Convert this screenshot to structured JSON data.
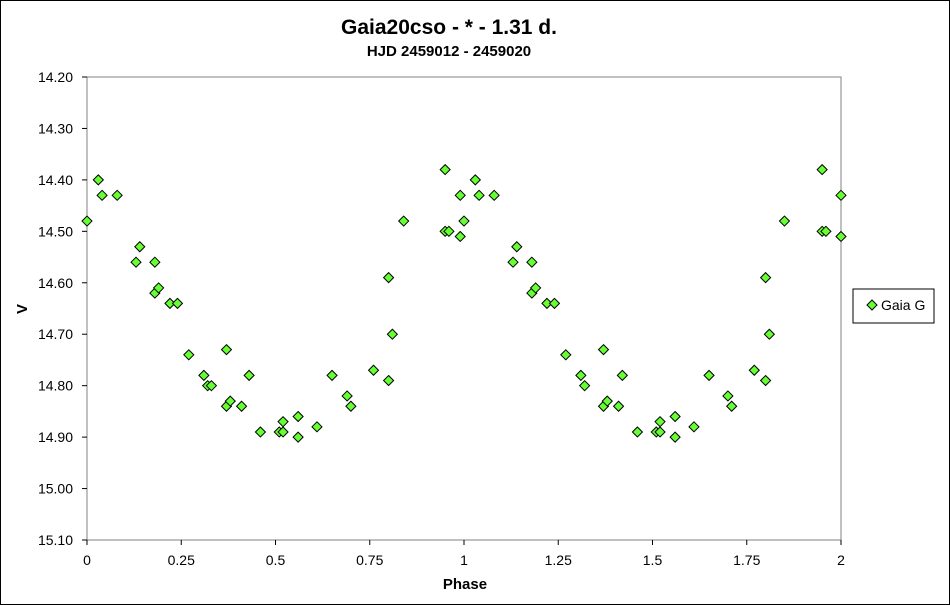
{
  "chart_data": {
    "type": "scatter",
    "title": "Gaia20cso  - * - 1.31 d.",
    "subtitle": "HJD 2459012 - 2459020",
    "xlabel": "Phase",
    "ylabel": "V",
    "xlim": [
      0,
      2
    ],
    "ylim": [
      15.1,
      14.2
    ],
    "y_inverted": true,
    "grid": false,
    "legend_position": "right",
    "x_ticks": [
      {
        "value": 0,
        "label": "0"
      },
      {
        "value": 0.25,
        "label": "0.25"
      },
      {
        "value": 0.5,
        "label": "0.5"
      },
      {
        "value": 0.75,
        "label": "0.75"
      },
      {
        "value": 1,
        "label": "1"
      },
      {
        "value": 1.25,
        "label": "1.25"
      },
      {
        "value": 1.5,
        "label": "1.5"
      },
      {
        "value": 1.75,
        "label": "1.75"
      },
      {
        "value": 2,
        "label": "2"
      }
    ],
    "y_ticks": [
      {
        "value": 14.2,
        "label": "14.20"
      },
      {
        "value": 14.3,
        "label": "14.30"
      },
      {
        "value": 14.4,
        "label": "14.40"
      },
      {
        "value": 14.5,
        "label": "14.50"
      },
      {
        "value": 14.6,
        "label": "14.60"
      },
      {
        "value": 14.7,
        "label": "14.70"
      },
      {
        "value": 14.8,
        "label": "14.80"
      },
      {
        "value": 14.9,
        "label": "14.90"
      },
      {
        "value": 15.0,
        "label": "15.00"
      },
      {
        "value": 15.1,
        "label": "15.10"
      }
    ],
    "series": [
      {
        "name": "Gaia G",
        "marker": "diamond",
        "color": "#66ff33",
        "edge_color": "#000000",
        "points": [
          [
            0.0,
            14.48
          ],
          [
            0.03,
            14.4
          ],
          [
            0.04,
            14.43
          ],
          [
            0.08,
            14.43
          ],
          [
            0.13,
            14.56
          ],
          [
            0.14,
            14.53
          ],
          [
            0.18,
            14.56
          ],
          [
            0.18,
            14.62
          ],
          [
            0.19,
            14.61
          ],
          [
            0.22,
            14.64
          ],
          [
            0.24,
            14.64
          ],
          [
            0.27,
            14.74
          ],
          [
            0.31,
            14.78
          ],
          [
            0.32,
            14.8
          ],
          [
            0.33,
            14.8
          ],
          [
            0.37,
            14.73
          ],
          [
            0.37,
            14.84
          ],
          [
            0.38,
            14.83
          ],
          [
            0.41,
            14.84
          ],
          [
            0.43,
            14.78
          ],
          [
            0.46,
            14.89
          ],
          [
            0.51,
            14.89
          ],
          [
            0.52,
            14.87
          ],
          [
            0.52,
            14.89
          ],
          [
            0.56,
            14.86
          ],
          [
            0.56,
            14.9
          ],
          [
            0.61,
            14.88
          ],
          [
            0.65,
            14.78
          ],
          [
            0.69,
            14.82
          ],
          [
            0.7,
            14.84
          ],
          [
            0.76,
            14.77
          ],
          [
            0.8,
            14.79
          ],
          [
            0.8,
            14.59
          ],
          [
            0.81,
            14.7
          ],
          [
            0.84,
            14.48
          ],
          [
            0.95,
            14.38
          ],
          [
            0.95,
            14.5
          ],
          [
            0.96,
            14.5
          ],
          [
            0.99,
            14.43
          ],
          [
            0.99,
            14.51
          ],
          [
            1.0,
            14.48
          ],
          [
            1.03,
            14.4
          ],
          [
            1.04,
            14.43
          ],
          [
            1.08,
            14.43
          ],
          [
            1.13,
            14.56
          ],
          [
            1.14,
            14.53
          ],
          [
            1.18,
            14.56
          ],
          [
            1.18,
            14.62
          ],
          [
            1.19,
            14.61
          ],
          [
            1.22,
            14.64
          ],
          [
            1.24,
            14.64
          ],
          [
            1.27,
            14.74
          ],
          [
            1.31,
            14.78
          ],
          [
            1.32,
            14.8
          ],
          [
            1.37,
            14.73
          ],
          [
            1.37,
            14.84
          ],
          [
            1.38,
            14.83
          ],
          [
            1.41,
            14.84
          ],
          [
            1.42,
            14.78
          ],
          [
            1.46,
            14.89
          ],
          [
            1.51,
            14.89
          ],
          [
            1.52,
            14.87
          ],
          [
            1.52,
            14.89
          ],
          [
            1.56,
            14.86
          ],
          [
            1.56,
            14.9
          ],
          [
            1.61,
            14.88
          ],
          [
            1.65,
            14.78
          ],
          [
            1.7,
            14.82
          ],
          [
            1.71,
            14.84
          ],
          [
            1.77,
            14.77
          ],
          [
            1.8,
            14.79
          ],
          [
            1.8,
            14.59
          ],
          [
            1.81,
            14.7
          ],
          [
            1.85,
            14.48
          ],
          [
            1.95,
            14.38
          ],
          [
            1.95,
            14.5
          ],
          [
            1.96,
            14.5
          ],
          [
            2.0,
            14.43
          ],
          [
            2.0,
            14.51
          ]
        ]
      }
    ]
  }
}
